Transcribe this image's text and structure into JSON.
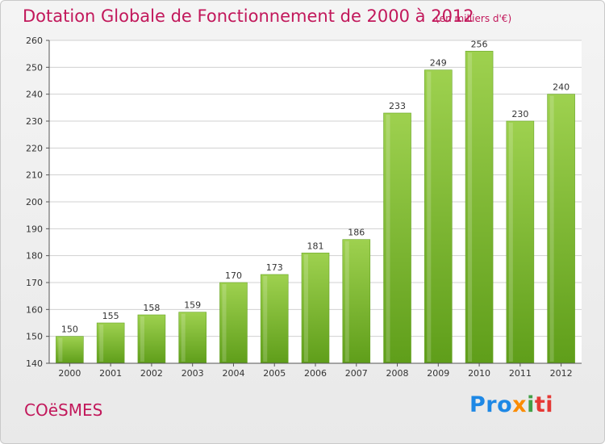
{
  "header": {
    "title": "Dotation Globale de Fonctionnement de 2000 à 2012",
    "unit": "(en milliers d'€)"
  },
  "footer": {
    "commune": "COëSMES",
    "logo_parts": [
      "Pro",
      "x",
      "i",
      "ti"
    ]
  },
  "colors": {
    "title": "#c2185b",
    "bar_top": "#9ed14f",
    "bar_bottom": "#5f9e1a",
    "grid": "#d0d0d0"
  },
  "chart_data": {
    "type": "bar",
    "title": "Dotation Globale de Fonctionnement de 2000 à 2012",
    "xlabel": "",
    "ylabel": "",
    "categories": [
      "2000",
      "2001",
      "2002",
      "2003",
      "2004",
      "2005",
      "2006",
      "2007",
      "2008",
      "2009",
      "2010",
      "2011",
      "2012"
    ],
    "values": [
      150,
      155,
      158,
      159,
      170,
      173,
      181,
      186,
      233,
      249,
      256,
      230,
      240
    ],
    "ylim": [
      140,
      260
    ],
    "yticks": [
      140,
      150,
      160,
      170,
      180,
      190,
      200,
      210,
      220,
      230,
      240,
      250,
      260
    ],
    "grid": true,
    "show_data_labels": true
  }
}
